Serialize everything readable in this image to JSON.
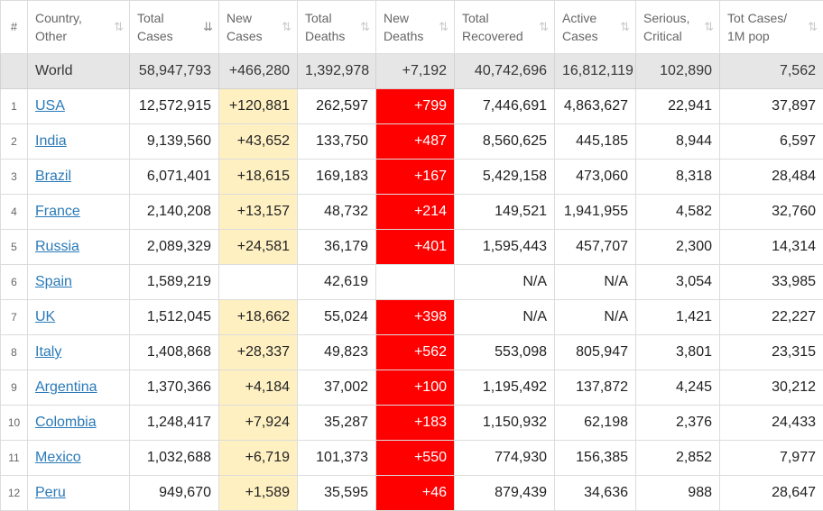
{
  "header": {
    "columns": [
      {
        "key": "hash",
        "line1": "#",
        "line2": ""
      },
      {
        "key": "country",
        "line1": "Country,",
        "line2": "Other"
      },
      {
        "key": "total_cases",
        "line1": "Total",
        "line2": "Cases"
      },
      {
        "key": "new_cases",
        "line1": "New",
        "line2": "Cases"
      },
      {
        "key": "total_deaths",
        "line1": "Total",
        "line2": "Deaths"
      },
      {
        "key": "new_deaths",
        "line1": "New",
        "line2": "Deaths"
      },
      {
        "key": "total_recovered",
        "line1": "Total",
        "line2": "Recovered"
      },
      {
        "key": "active_cases",
        "line1": "Active",
        "line2": "Cases"
      },
      {
        "key": "serious",
        "line1": "Serious,",
        "line2": "Critical"
      },
      {
        "key": "per_million",
        "line1": "Tot Cases/",
        "line2": "1M pop"
      }
    ],
    "sort_icon": "⇅",
    "active_sort_icon": "⇊"
  },
  "world": {
    "country": "World",
    "total_cases": "58,947,793",
    "new_cases": "+466,280",
    "total_deaths": "1,392,978",
    "new_deaths": "+7,192",
    "total_recovered": "40,742,696",
    "active_cases": "16,812,119",
    "serious": "102,890",
    "per_million": "7,562"
  },
  "rows": [
    {
      "rank": "1",
      "country": "USA",
      "total_cases": "12,572,915",
      "new_cases": "+120,881",
      "total_deaths": "262,597",
      "new_deaths": "+799",
      "total_recovered": "7,446,691",
      "active_cases": "4,863,627",
      "serious": "22,941",
      "per_million": "37,897"
    },
    {
      "rank": "2",
      "country": "India",
      "total_cases": "9,139,560",
      "new_cases": "+43,652",
      "total_deaths": "133,750",
      "new_deaths": "+487",
      "total_recovered": "8,560,625",
      "active_cases": "445,185",
      "serious": "8,944",
      "per_million": "6,597"
    },
    {
      "rank": "3",
      "country": "Brazil",
      "total_cases": "6,071,401",
      "new_cases": "+18,615",
      "total_deaths": "169,183",
      "new_deaths": "+167",
      "total_recovered": "5,429,158",
      "active_cases": "473,060",
      "serious": "8,318",
      "per_million": "28,484"
    },
    {
      "rank": "4",
      "country": "France",
      "total_cases": "2,140,208",
      "new_cases": "+13,157",
      "total_deaths": "48,732",
      "new_deaths": "+214",
      "total_recovered": "149,521",
      "active_cases": "1,941,955",
      "serious": "4,582",
      "per_million": "32,760"
    },
    {
      "rank": "5",
      "country": "Russia",
      "total_cases": "2,089,329",
      "new_cases": "+24,581",
      "total_deaths": "36,179",
      "new_deaths": "+401",
      "total_recovered": "1,595,443",
      "active_cases": "457,707",
      "serious": "2,300",
      "per_million": "14,314"
    },
    {
      "rank": "6",
      "country": "Spain",
      "total_cases": "1,589,219",
      "new_cases": "",
      "total_deaths": "42,619",
      "new_deaths": "",
      "total_recovered": "N/A",
      "active_cases": "N/A",
      "serious": "3,054",
      "per_million": "33,985"
    },
    {
      "rank": "7",
      "country": "UK",
      "total_cases": "1,512,045",
      "new_cases": "+18,662",
      "total_deaths": "55,024",
      "new_deaths": "+398",
      "total_recovered": "N/A",
      "active_cases": "N/A",
      "serious": "1,421",
      "per_million": "22,227"
    },
    {
      "rank": "8",
      "country": "Italy",
      "total_cases": "1,408,868",
      "new_cases": "+28,337",
      "total_deaths": "49,823",
      "new_deaths": "+562",
      "total_recovered": "553,098",
      "active_cases": "805,947",
      "serious": "3,801",
      "per_million": "23,315"
    },
    {
      "rank": "9",
      "country": "Argentina",
      "total_cases": "1,370,366",
      "new_cases": "+4,184",
      "total_deaths": "37,002",
      "new_deaths": "+100",
      "total_recovered": "1,195,492",
      "active_cases": "137,872",
      "serious": "4,245",
      "per_million": "30,212"
    },
    {
      "rank": "10",
      "country": "Colombia",
      "total_cases": "1,248,417",
      "new_cases": "+7,924",
      "total_deaths": "35,287",
      "new_deaths": "+183",
      "total_recovered": "1,150,932",
      "active_cases": "62,198",
      "serious": "2,376",
      "per_million": "24,433"
    },
    {
      "rank": "11",
      "country": "Mexico",
      "total_cases": "1,032,688",
      "new_cases": "+6,719",
      "total_deaths": "101,373",
      "new_deaths": "+550",
      "total_recovered": "774,930",
      "active_cases": "156,385",
      "serious": "2,852",
      "per_million": "7,977"
    },
    {
      "rank": "12",
      "country": "Peru",
      "total_cases": "949,670",
      "new_cases": "+1,589",
      "total_deaths": "35,595",
      "new_deaths": "+46",
      "total_recovered": "879,439",
      "active_cases": "34,636",
      "serious": "988",
      "per_million": "28,647"
    }
  ],
  "colors": {
    "link": "#2a7ab8",
    "new_cases_bg": "#fff0c2",
    "new_deaths_bg": "#ff0000",
    "world_row_bg": "#e6e6e6"
  }
}
